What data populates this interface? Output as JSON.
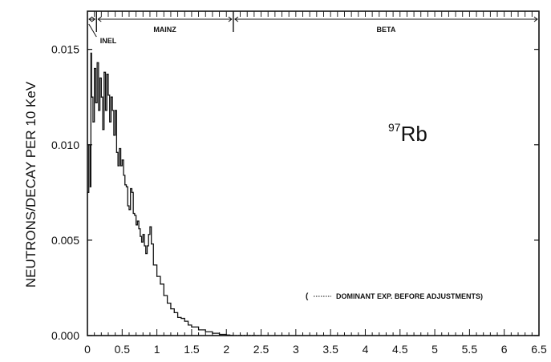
{
  "chart_data": {
    "type": "line",
    "ylabel": "NEUTRONS/DECAY PER 10 KeV",
    "xlim": [
      0,
      6.5
    ],
    "ylim": [
      0,
      0.017
    ],
    "x_ticks": [
      0,
      0.5,
      1,
      1.5,
      2,
      2.5,
      3,
      3.5,
      4,
      4.5,
      5,
      5.5,
      6,
      6.5
    ],
    "x_tick_labels": [
      "0",
      "0.5",
      "1",
      "1.5",
      "2",
      "2.5",
      "3",
      "3.5",
      "4",
      "4.5",
      "5",
      "5.5",
      "6",
      "6.5"
    ],
    "y_ticks": [
      0,
      0.005,
      0.01,
      0.015
    ],
    "y_tick_labels": [
      "0.000",
      "0.005",
      "0.010",
      "0.015"
    ],
    "isotope_label": "Rb",
    "isotope_mass": "97",
    "region_labels": [
      "INEL",
      "MAINZ",
      "BETA"
    ],
    "region_spans": [
      [
        0,
        0.13
      ],
      [
        0.13,
        2.1
      ],
      [
        2.1,
        6.5
      ]
    ],
    "annotation_open": "(",
    "annotation_text": "DOMINANT EXP. BEFORE ADJUSTMENTS)",
    "grid": false,
    "series": [
      {
        "style": "solid",
        "x": [
          0.0,
          0.02,
          0.04,
          0.05,
          0.06,
          0.08,
          0.1,
          0.12,
          0.14,
          0.16,
          0.18,
          0.2,
          0.22,
          0.24,
          0.26,
          0.28,
          0.3,
          0.32,
          0.34,
          0.36,
          0.38,
          0.4,
          0.42,
          0.44,
          0.46,
          0.48,
          0.5,
          0.52,
          0.54,
          0.56,
          0.58,
          0.6,
          0.62,
          0.64,
          0.66,
          0.68,
          0.7,
          0.72,
          0.74,
          0.76,
          0.78,
          0.8,
          0.82,
          0.84,
          0.86,
          0.88,
          0.9,
          0.92,
          0.95,
          1.0,
          1.05,
          1.1,
          1.15,
          1.2,
          1.25,
          1.3,
          1.35,
          1.4,
          1.45,
          1.5,
          1.6,
          1.7,
          1.8,
          1.9,
          2.0,
          2.05,
          2.1
        ],
        "y": [
          0.0075,
          0.01,
          0.0078,
          0.0148,
          0.0125,
          0.0112,
          0.014,
          0.0122,
          0.0143,
          0.0118,
          0.0135,
          0.0125,
          0.0108,
          0.0138,
          0.0118,
          0.0137,
          0.0126,
          0.0112,
          0.0125,
          0.0118,
          0.0105,
          0.0118,
          0.0096,
          0.0089,
          0.0098,
          0.0089,
          0.0092,
          0.0084,
          0.0079,
          0.0078,
          0.0068,
          0.0066,
          0.0077,
          0.0075,
          0.0064,
          0.0063,
          0.0058,
          0.006,
          0.0056,
          0.0052,
          0.0049,
          0.0053,
          0.0047,
          0.0043,
          0.0047,
          0.0053,
          0.0057,
          0.0048,
          0.0037,
          0.0031,
          0.0027,
          0.0021,
          0.0017,
          0.0014,
          0.0012,
          0.00095,
          0.0009,
          0.00075,
          0.00055,
          0.00045,
          0.0003,
          0.0002,
          0.00012,
          6e-05,
          3e-05,
          1e-05,
          0.0
        ]
      },
      {
        "style": "dotted",
        "x": [
          2.05,
          2.2,
          2.4,
          2.5
        ],
        "y": [
          1e-05,
          2e-05,
          1e-05,
          0.0
        ]
      }
    ]
  }
}
